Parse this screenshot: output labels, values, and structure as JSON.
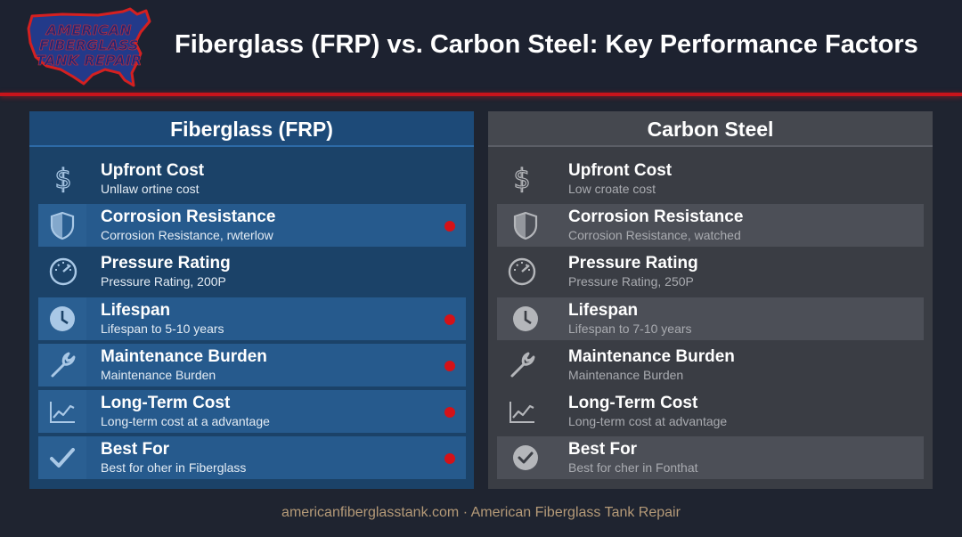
{
  "header": {
    "logo": {
      "line1": "AMERICAN",
      "line2": "FIBERGLASS",
      "line3": "TANK REPAIR"
    },
    "title": "Fiberglass (FRP) vs. Carbon Steel: Key Performance Factors"
  },
  "panels": {
    "frp": {
      "title": "Fiberglass (FRP)",
      "rows": [
        {
          "title": "Upfront Cost",
          "subtitle": "Unllaw ortine cost",
          "icon": "dollar-icon",
          "highlight": false,
          "marker": false
        },
        {
          "title": "Corrosion Resistance",
          "subtitle": "Corrosion Resistance, rwterlow",
          "icon": "shield-icon",
          "highlight": true,
          "marker": true
        },
        {
          "title": "Pressure Rating",
          "subtitle": "Pressure Rating, 200P",
          "icon": "gauge-icon",
          "highlight": false,
          "marker": false
        },
        {
          "title": "Lifespan",
          "subtitle": "Lifespan to 5-10 years",
          "icon": "clock-icon",
          "highlight": true,
          "marker": true
        },
        {
          "title": "Maintenance Burden",
          "subtitle": "Maintenance Burden",
          "icon": "wrench-icon",
          "highlight": true,
          "marker": true
        },
        {
          "title": "Long-Term Cost",
          "subtitle": "Long-term cost at a advantage",
          "icon": "trend-chart-icon",
          "highlight": true,
          "marker": true
        },
        {
          "title": "Best For",
          "subtitle": "Best for oher in Fiberglass",
          "icon": "checkmark-icon",
          "highlight": true,
          "marker": true
        }
      ]
    },
    "steel": {
      "title": "Carbon Steel",
      "rows": [
        {
          "title": "Upfront Cost",
          "subtitle": "Low croate cost",
          "icon": "dollar-icon",
          "highlight": false
        },
        {
          "title": "Corrosion Resistance",
          "subtitle": "Corrosion Resistance, watched",
          "icon": "shield-icon",
          "highlight": true
        },
        {
          "title": "Pressure Rating",
          "subtitle": "Pressure Rating, 250P",
          "icon": "gauge-icon",
          "highlight": false
        },
        {
          "title": "Lifespan",
          "subtitle": "Lifespan to 7-10 years",
          "icon": "clock-icon",
          "highlight": true
        },
        {
          "title": "Maintenance Burden",
          "subtitle": "Maintenance Burden",
          "icon": "wrench-icon",
          "highlight": false
        },
        {
          "title": "Long-Term Cost",
          "subtitle": "Long-term cost at advantage",
          "icon": "trend-chart-icon",
          "highlight": false
        },
        {
          "title": "Best For",
          "subtitle": "Best for cher in Fonthat",
          "icon": "check-circle-icon",
          "highlight": true
        }
      ]
    }
  },
  "colors": {
    "accent_red": "#c8141b",
    "frp_panel": "#1b4268",
    "steel_panel": "#3a3d44"
  },
  "footer": {
    "text": "americanfiberglasstank.com · American Fiberglass Tank Repair"
  }
}
